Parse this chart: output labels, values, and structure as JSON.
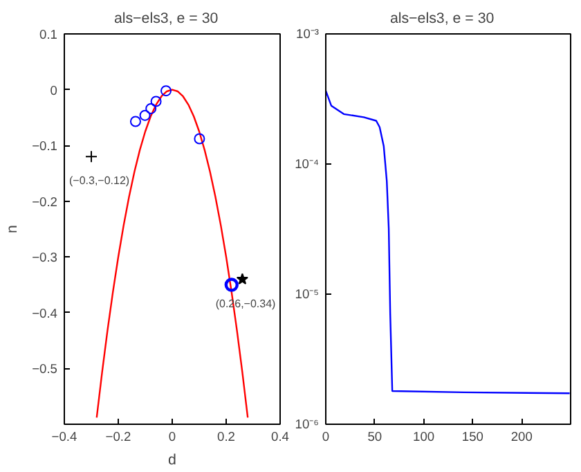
{
  "chart_data": [
    {
      "type": "scatter",
      "title": "als−els3,    e = 30",
      "xlabel": "d",
      "ylabel": "n",
      "xlim": [
        -0.4,
        0.4
      ],
      "ylim": [
        -0.6,
        0.1
      ],
      "xticks": [
        {
          "value": -0.4,
          "label": "−0.4"
        },
        {
          "value": -0.2,
          "label": "−0.2"
        },
        0,
        0.2,
        0.4
      ],
      "yticks": [
        {
          "value": -0.5,
          "label": "−0.5"
        },
        {
          "value": -0.4,
          "label": "−0.4"
        },
        {
          "value": -0.3,
          "label": "−0.3"
        },
        {
          "value": -0.2,
          "label": "−0.2"
        },
        {
          "value": -0.1,
          "label": "−0.1"
        },
        0,
        0.1
      ],
      "grid": false,
      "series": [
        {
          "type": "line",
          "color": "#ff0000",
          "line_style": "solid",
          "marker": "none",
          "x": [
            -0.28,
            -0.26,
            -0.24,
            -0.22,
            -0.2,
            -0.18,
            -0.16,
            -0.14,
            -0.12,
            -0.1,
            -0.08,
            -0.06,
            -0.04,
            -0.02,
            0,
            0.02,
            0.04,
            0.06,
            0.08,
            0.1,
            0.12,
            0.14,
            0.16,
            0.18,
            0.2,
            0.22,
            0.24,
            0.26,
            0.28
          ],
          "values": [
            -0.588,
            -0.507,
            -0.432,
            -0.363,
            -0.3,
            -0.243,
            -0.192,
            -0.147,
            -0.108,
            -0.075,
            -0.048,
            -0.027,
            -0.012,
            -0.003,
            0,
            -0.003,
            -0.012,
            -0.027,
            -0.048,
            -0.075,
            -0.108,
            -0.147,
            -0.192,
            -0.243,
            -0.3,
            -0.363,
            -0.432,
            -0.507,
            -0.588
          ]
        },
        {
          "type": "scatter",
          "color": "#0000ff",
          "marker": "circle",
          "x": [
            -0.136,
            -0.101,
            -0.079,
            -0.06,
            -0.023,
            0.101
          ],
          "values": [
            -0.057,
            -0.046,
            -0.034,
            -0.021,
            -0.002,
            -0.088
          ]
        },
        {
          "type": "scatter",
          "color": "#0000ff",
          "marker": "circle",
          "x": [
            0.22
          ],
          "values": [
            -0.35
          ]
        },
        {
          "type": "scatter",
          "color": "#000000",
          "marker": "cross",
          "x": [
            -0.3
          ],
          "values": [
            -0.12
          ]
        },
        {
          "type": "scatter",
          "color": "#000000",
          "marker": "star",
          "x": [
            0.26
          ],
          "values": [
            -0.34
          ]
        }
      ],
      "annotations": [
        {
          "text": "(−0.3,−0.12)",
          "x": -0.3,
          "y": -0.12
        },
        {
          "text": "(0.26,−0.34)",
          "x": 0.26,
          "y": -0.34
        }
      ]
    },
    {
      "type": "line",
      "title": "als−els3,    e = 30",
      "log": "y",
      "xlim": [
        0,
        250
      ],
      "ylim": [
        1e-06,
        0.001
      ],
      "xticks": [
        0,
        50,
        100,
        150,
        200
      ],
      "yticks": [
        {
          "value": 1e-06,
          "label": "10⁻⁶"
        },
        {
          "value": 1e-05,
          "label": "10⁻⁵"
        },
        {
          "value": 0.0001,
          "label": "10⁻⁴"
        },
        {
          "value": 0.001,
          "label": "10⁻³"
        }
      ],
      "grid": false,
      "series": [
        {
          "color": "#0000ff",
          "line_style": "solid",
          "x": [
            0,
            5.6,
            18.4,
            38.8,
            51.5,
            55,
            59.2,
            62.3,
            64.3,
            65.8,
            67.9,
            140.8,
            249
          ],
          "values": [
            0.000366,
            0.000281,
            0.000242,
            0.000229,
            0.000215,
            0.000192,
            0.000137,
            7.4e-05,
            3.2e-05,
            7.1e-06,
            1.8e-06,
            1.76e-06,
            1.73e-06
          ]
        }
      ]
    }
  ]
}
